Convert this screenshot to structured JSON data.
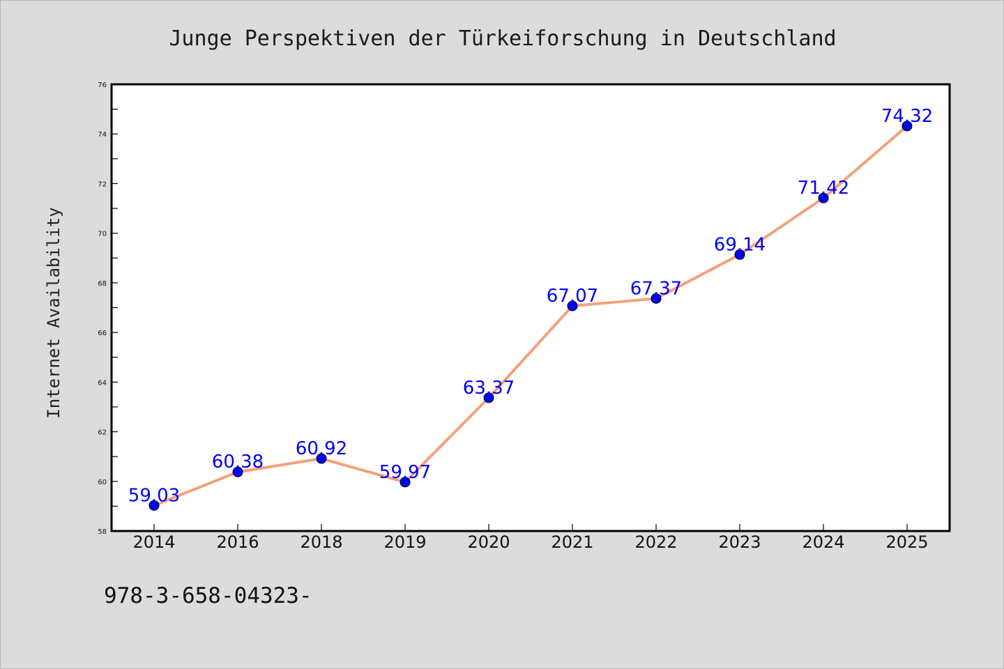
{
  "chart_data": {
    "type": "line",
    "title": "Junge Perspektiven der Türkeiforschung in Deutschland",
    "xlabel": "",
    "ylabel": "Internet Availability",
    "categories": [
      "2014",
      "2016",
      "2018",
      "2019",
      "2020",
      "2021",
      "2022",
      "2023",
      "2024",
      "2025"
    ],
    "series": [
      {
        "values": [
          59.03,
          60.38,
          60.92,
          59.97,
          63.37,
          67.07,
          67.37,
          69.14,
          71.42,
          74.32
        ],
        "labels": [
          "59.03",
          "60.38",
          "60.92",
          "59.97",
          "63.37",
          "67.07",
          "67.37",
          "69.14",
          "71.42",
          "74.32"
        ]
      }
    ],
    "ylim": [
      58,
      76
    ],
    "yticks": [
      "58",
      "60",
      "62",
      "64",
      "66",
      "68",
      "70",
      "72",
      "74",
      "76"
    ],
    "grid": false,
    "legend": "none",
    "colors": {
      "line": "#f4a07a",
      "marker": "#0000ff",
      "data_label": "#0000ff",
      "background": "#dcdcdc",
      "plot_area": "#ffffff"
    }
  },
  "footer": {
    "text": "978-3-658-04323-"
  }
}
